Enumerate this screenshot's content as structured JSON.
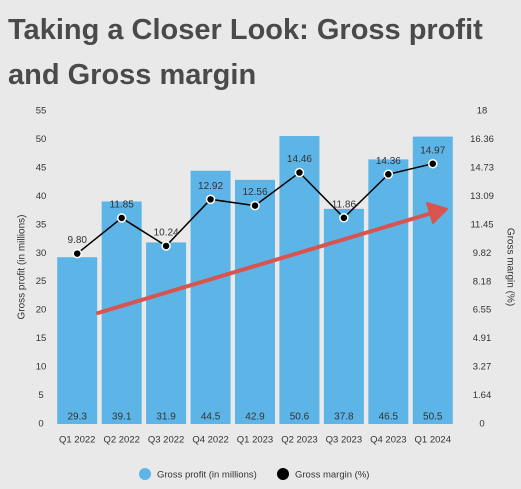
{
  "chart_data": {
    "type": "bar",
    "title": "Taking a Closer Look: Gross profit and Gross margin",
    "y_label": "Gross profit (in millions)",
    "y2_label": "Gross margin (%)",
    "categories": [
      "Q1 2022",
      "Q2 2022",
      "Q3 2022",
      "Q4 2022",
      "Q1 2023",
      "Q2 2023",
      "Q3 2023",
      "Q4 2023",
      "Q1 2024"
    ],
    "series": [
      {
        "name": "Gross profit (in millions)",
        "type": "bar",
        "color": "#5cb5e6",
        "values": [
          29.3,
          39.1,
          31.9,
          44.5,
          42.9,
          50.6,
          37.8,
          46.5,
          50.5
        ]
      },
      {
        "name": "Gross margin (%)",
        "type": "line",
        "color": "#000000",
        "axis": "y2",
        "values": [
          9.8,
          11.85,
          10.24,
          12.92,
          12.56,
          14.46,
          11.86,
          14.36,
          14.97
        ],
        "value_labels": [
          "9.80",
          "11.85",
          "10.24",
          "12.92",
          "12.56",
          "14.46",
          "11.86",
          "14.36",
          "14.97"
        ]
      }
    ],
    "ylim": [
      0,
      55
    ],
    "yticks": [
      0,
      5,
      10,
      15,
      20,
      25,
      30,
      35,
      40,
      45,
      50,
      55
    ],
    "y2lim": [
      0,
      18
    ],
    "y2ticks": [
      0,
      1.64,
      3.27,
      4.91,
      6.55,
      8.18,
      9.82,
      11.45,
      13.09,
      14.73,
      16.36,
      18
    ],
    "grid": false
  }
}
